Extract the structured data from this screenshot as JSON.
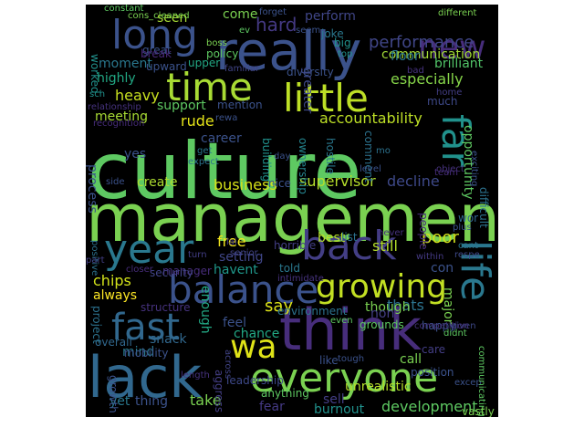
{
  "words": [
    {
      "text": "culture",
      "color": "#5ec962"
    },
    {
      "text": "management",
      "color": "#7ad151"
    },
    {
      "text": "really",
      "color": "#3b528b"
    },
    {
      "text": "think",
      "color": "#472d7b"
    },
    {
      "text": "lack",
      "color": "#31688e"
    },
    {
      "text": "everyone",
      "color": "#7ad151"
    },
    {
      "text": "balance",
      "color": "#3b528b"
    },
    {
      "text": "growing",
      "color": "#c2df23"
    },
    {
      "text": "long",
      "color": "#3b528b"
    },
    {
      "text": "time",
      "color": "#a8db34"
    },
    {
      "text": "little",
      "color": "#bddf26"
    },
    {
      "text": "life",
      "color": "#2a788e"
    },
    {
      "text": "back",
      "color": "#433e85"
    },
    {
      "text": "year",
      "color": "#2a788e"
    },
    {
      "text": "far",
      "color": "#21918c"
    },
    {
      "text": "fast",
      "color": "#31688e"
    },
    {
      "text": "wa",
      "color": "#dfe318"
    },
    {
      "text": "new",
      "color": "#472d7b"
    },
    {
      "text": "hard",
      "color": "#443983"
    },
    {
      "text": "performance",
      "color": "#404688"
    },
    {
      "text": "accountability",
      "color": "#bddf26"
    },
    {
      "text": "supervisor",
      "color": "#b5de2b"
    },
    {
      "text": "communication",
      "color": "#a2da37"
    },
    {
      "text": "especially",
      "color": "#86d549"
    },
    {
      "text": "opportunity",
      "color": "#5ec962"
    },
    {
      "text": "decline",
      "color": "#3e4989"
    },
    {
      "text": "still",
      "color": "#b5de2b"
    },
    {
      "text": "poor",
      "color": "#d2e21b"
    },
    {
      "text": "say",
      "color": "#dde318"
    },
    {
      "text": "thats",
      "color": "#2c728e"
    },
    {
      "text": "though",
      "color": "#7ad151"
    },
    {
      "text": "brilliant",
      "color": "#52c569"
    },
    {
      "text": "heavy",
      "color": "#c8e020"
    },
    {
      "text": "meeting",
      "color": "#a8db34"
    },
    {
      "text": "business",
      "color": "#d8e219"
    },
    {
      "text": "create",
      "color": "#addc30"
    },
    {
      "text": "seen",
      "color": "#a8db34"
    },
    {
      "text": "come",
      "color": "#7ad151"
    },
    {
      "text": "perform",
      "color": "#404688"
    },
    {
      "text": "moment",
      "color": "#2a788e"
    },
    {
      "text": "highly",
      "color": "#22a884"
    },
    {
      "text": "worked",
      "color": "#21918c"
    },
    {
      "text": "great",
      "color": "#3b528b"
    },
    {
      "text": "break",
      "color": "#482878"
    },
    {
      "text": "floor",
      "color": "#2a788e"
    },
    {
      "text": "rude",
      "color": "#e5e419"
    },
    {
      "text": "career",
      "color": "#3b528b"
    },
    {
      "text": "yes",
      "color": "#3b528b"
    },
    {
      "text": "free",
      "color": "#f1e51d"
    },
    {
      "text": "best",
      "color": "#b5de2b"
    },
    {
      "text": "setting",
      "color": "#404688"
    },
    {
      "text": "havent",
      "color": "#1f988b"
    },
    {
      "text": "chips",
      "color": "#d2e21b"
    },
    {
      "text": "always",
      "color": "#fde725"
    },
    {
      "text": "enough",
      "color": "#22a884"
    },
    {
      "text": "snack",
      "color": "#31688e"
    },
    {
      "text": "mind",
      "color": "#2a788e"
    },
    {
      "text": "feel",
      "color": "#3b528b"
    },
    {
      "text": "chance",
      "color": "#22a884"
    },
    {
      "text": "take",
      "color": "#7ad151"
    },
    {
      "text": "thing",
      "color": "#3b528b"
    },
    {
      "text": "yet",
      "color": "#2a788e"
    },
    {
      "text": "sell",
      "color": "#433e85"
    },
    {
      "text": "fear",
      "color": "#443983"
    },
    {
      "text": "burnout",
      "color": "#21918c"
    },
    {
      "text": "development",
      "color": "#5ec962"
    },
    {
      "text": "unrealistic",
      "color": "#b5de2b"
    },
    {
      "text": "call",
      "color": "#7ad151"
    },
    {
      "text": "non",
      "color": "#433e85"
    },
    {
      "text": "con",
      "color": "#3b528b"
    },
    {
      "text": "major",
      "color": "#7ad151"
    },
    {
      "text": "support",
      "color": "#5ec962"
    },
    {
      "text": "mention",
      "color": "#3b528b"
    },
    {
      "text": "diversity",
      "color": "#3b528b"
    },
    {
      "text": "greater",
      "color": "#3e4989"
    },
    {
      "text": "ownership",
      "color": "#25848e"
    },
    {
      "text": "building",
      "color": "#21918c"
    },
    {
      "text": "hostile",
      "color": "#2a788e"
    },
    {
      "text": "comment",
      "color": "#2c728e"
    },
    {
      "text": "mobility",
      "color": "#3b528b"
    },
    {
      "text": "process",
      "color": "#3b528b"
    },
    {
      "text": "manager",
      "color": "#472d7b"
    },
    {
      "text": "security",
      "color": "#414487"
    },
    {
      "text": "told",
      "color": "#2a788e"
    },
    {
      "text": "structure",
      "color": "#46327e"
    },
    {
      "text": "environment",
      "color": "#2c728e"
    },
    {
      "text": "grounds",
      "color": "#5ec962"
    },
    {
      "text": "aggress",
      "color": "#433e85"
    },
    {
      "text": "anything",
      "color": "#5ec962"
    },
    {
      "text": "leadership",
      "color": "#3e4989"
    },
    {
      "text": "growth",
      "color": "#3b528b"
    },
    {
      "text": "overall",
      "color": "#31688e"
    },
    {
      "text": "positive",
      "color": "#2c728e"
    },
    {
      "text": "project",
      "color": "#2c728e"
    },
    {
      "text": "part",
      "color": "#433e85"
    },
    {
      "text": "closer",
      "color": "#472d7b"
    },
    {
      "text": "intimidate",
      "color": "#46327e"
    },
    {
      "text": "senior",
      "color": "#414487"
    },
    {
      "text": "horrible",
      "color": "#433e85"
    },
    {
      "text": "list",
      "color": "#2c728e"
    },
    {
      "text": "never",
      "color": "#46327e"
    },
    {
      "text": "people",
      "color": "#472d7b"
    },
    {
      "text": "within",
      "color": "#443983"
    },
    {
      "text": "respe",
      "color": "#3e4989"
    },
    {
      "text": "cant",
      "color": "#2c728e"
    },
    {
      "text": "plus",
      "color": "#3b528b"
    },
    {
      "text": "wor",
      "color": "#31688e"
    },
    {
      "text": "difficult",
      "color": "#2c728e"
    },
    {
      "text": "exciting",
      "color": "#3b528b"
    },
    {
      "text": "team",
      "color": "#472d7b"
    },
    {
      "text": "object",
      "color": "#46327e"
    },
    {
      "text": "level",
      "color": "#3b528b"
    },
    {
      "text": "much",
      "color": "#3e4989"
    },
    {
      "text": "home",
      "color": "#433e85"
    },
    {
      "text": "bad",
      "color": "#46327e"
    },
    {
      "text": "top",
      "color": "#21918c"
    },
    {
      "text": "big",
      "color": "#21918c"
    },
    {
      "text": "joke",
      "color": "#2a788e"
    },
    {
      "text": "seem",
      "color": "#3b528b"
    },
    {
      "text": "forget",
      "color": "#3b528b"
    },
    {
      "text": "different",
      "color": "#7ad151"
    },
    {
      "text": "boss",
      "color": "#7ad151"
    },
    {
      "text": "policy",
      "color": "#5ec962"
    },
    {
      "text": "ev",
      "color": "#5ec962"
    },
    {
      "text": "cons_cleaned",
      "color": "#7ad151"
    },
    {
      "text": "constant",
      "color": "#5ec962"
    },
    {
      "text": "upper",
      "color": "#22a884"
    },
    {
      "text": "upward",
      "color": "#3b528b"
    },
    {
      "text": "familiar",
      "color": "#414487"
    },
    {
      "text": "sch",
      "color": "#21918c"
    },
    {
      "text": "relationship",
      "color": "#46327e"
    },
    {
      "text": "recognition",
      "color": "#472d7b"
    },
    {
      "text": "rewa",
      "color": "#3b528b"
    },
    {
      "text": "get",
      "color": "#2a788e"
    },
    {
      "text": "expect",
      "color": "#2c728e"
    },
    {
      "text": "day",
      "color": "#3b528b"
    },
    {
      "text": "nice",
      "color": "#3b528b"
    },
    {
      "text": "mo",
      "color": "#2c728e"
    },
    {
      "text": "side",
      "color": "#3b528b"
    },
    {
      "text": "turn",
      "color": "#433e85"
    },
    {
      "text": "lai",
      "color": "#443983"
    },
    {
      "text": "even",
      "color": "#5ec962"
    },
    {
      "text": "happy",
      "color": "#3b528b"
    },
    {
      "text": "didnt",
      "color": "#5ec962"
    },
    {
      "text": "given",
      "color": "#3e4989"
    },
    {
      "text": "competition",
      "color": "#46327e"
    },
    {
      "text": "care",
      "color": "#433e85"
    },
    {
      "text": "tough",
      "color": "#3b528b"
    },
    {
      "text": "like",
      "color": "#3b528b"
    },
    {
      "text": "position",
      "color": "#3b528b"
    },
    {
      "text": "excep",
      "color": "#3b528b"
    },
    {
      "text": "communicating",
      "color": "#5ec962"
    },
    {
      "text": "vastly",
      "color": "#7ad151"
    },
    {
      "text": "across",
      "color": "#414487"
    },
    {
      "text": "length",
      "color": "#46327e"
    }
  ]
}
